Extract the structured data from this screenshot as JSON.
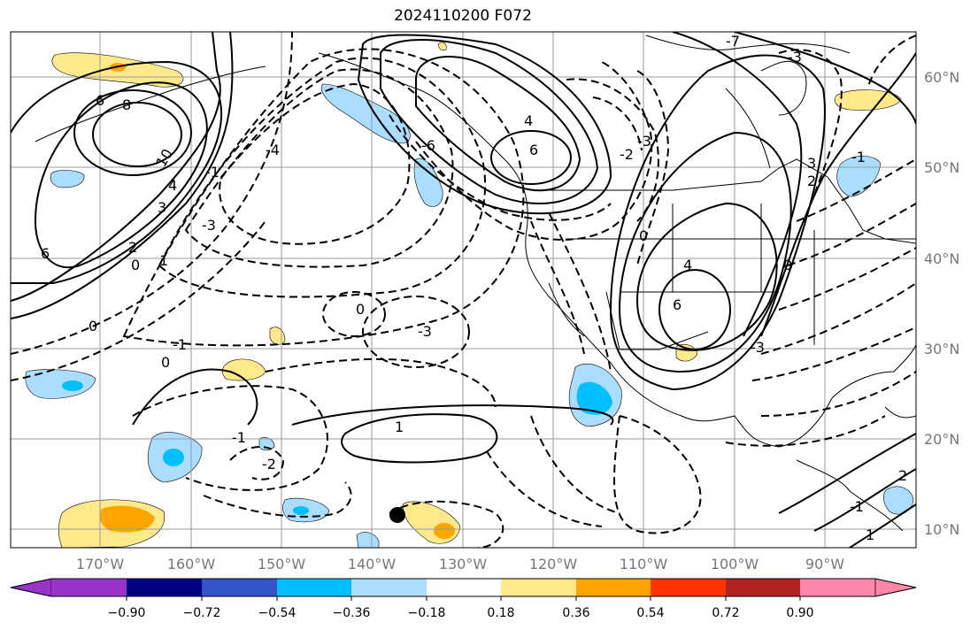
{
  "title": "2024110200 F072",
  "map": {
    "lon_ticks": [
      "170°W",
      "160°W",
      "150°W",
      "140°W",
      "130°W",
      "120°W",
      "110°W",
      "100°W",
      "90°W"
    ],
    "lat_ticks": [
      "60°N",
      "50°N",
      "40°N",
      "30°N",
      "20°N",
      "10°N"
    ],
    "contour_labels": [
      {
        "text": "6"
      },
      {
        "text": "8"
      },
      {
        "text": "10"
      },
      {
        "text": "4"
      },
      {
        "text": "3"
      },
      {
        "text": "2"
      },
      {
        "text": "1"
      },
      {
        "text": "0"
      },
      {
        "text": "-1"
      },
      {
        "text": "6"
      },
      {
        "text": "-3"
      },
      {
        "text": "-4"
      },
      {
        "text": "0"
      },
      {
        "text": "-3"
      },
      {
        "text": "-1"
      },
      {
        "text": "0"
      },
      {
        "text": "1"
      },
      {
        "text": "-2"
      },
      {
        "text": "-1"
      },
      {
        "text": "0"
      },
      {
        "text": "6"
      },
      {
        "text": "4"
      },
      {
        "text": "-6"
      },
      {
        "text": "-3"
      },
      {
        "text": "-2"
      },
      {
        "text": "0"
      },
      {
        "text": "4"
      },
      {
        "text": "6"
      },
      {
        "text": "-3"
      },
      {
        "text": "-7"
      },
      {
        "text": "3"
      },
      {
        "text": "2"
      },
      {
        "text": "-1"
      },
      {
        "text": "0"
      },
      {
        "text": "-3"
      },
      {
        "text": "-1"
      },
      {
        "text": "2"
      },
      {
        "text": "1"
      }
    ],
    "colors": {
      "land_lines": "#000000",
      "grid": "#9a9a9a",
      "pos_light": "#ffe98a",
      "pos_mid": "#ffa500",
      "neg_light": "#aaddff",
      "neg_mid": "#00bfff"
    }
  },
  "colorbar": {
    "labels": [
      "−0.90",
      "−0.72",
      "−0.54",
      "−0.36",
      "−0.18",
      "0.18",
      "0.36",
      "0.54",
      "0.72",
      "0.90"
    ],
    "colors": [
      "#9933cc",
      "#000080",
      "#3355cc",
      "#00bfff",
      "#aaddff",
      "#ffffff",
      "#ffe98a",
      "#ffa500",
      "#ff3300",
      "#b22222",
      "#ff88aa"
    ]
  }
}
